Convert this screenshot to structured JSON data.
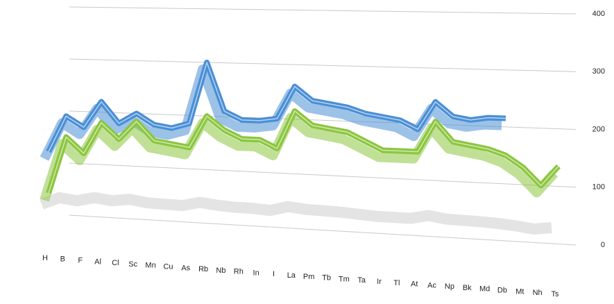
{
  "chart_data": {
    "type": "line",
    "categories": [
      "H",
      "B",
      "F",
      "Al",
      "Cl",
      "Sc",
      "Mn",
      "Cu",
      "As",
      "Rb",
      "Nb",
      "Rh",
      "In",
      "I",
      "La",
      "Pm",
      "Tb",
      "Tm",
      "Ta",
      "Ir",
      "Tl",
      "At",
      "Ac",
      "Np",
      "Bk",
      "Md",
      "Db",
      "Mt",
      "Nh",
      "Ts"
    ],
    "series": [
      {
        "color": "#4a8fd6",
        "values": [
          120,
          190,
          170,
          220,
          180,
          200,
          180,
          175,
          185,
          300,
          210,
          195,
          195,
          200,
          260,
          235,
          230,
          225,
          215,
          210,
          205,
          190,
          240,
          215,
          210,
          215,
          215,
          null,
          null,
          null
        ]
      },
      {
        "color": "#8cc63f",
        "values": [
          40,
          150,
          120,
          180,
          150,
          185,
          150,
          145,
          140,
          200,
          175,
          160,
          160,
          145,
          215,
          190,
          185,
          180,
          165,
          150,
          150,
          150,
          205,
          170,
          165,
          160,
          150,
          130,
          100,
          135
        ]
      }
    ],
    "ylim": [
      0,
      400
    ],
    "yticks": [
      0,
      100,
      200,
      300,
      400
    ],
    "grid": true
  }
}
